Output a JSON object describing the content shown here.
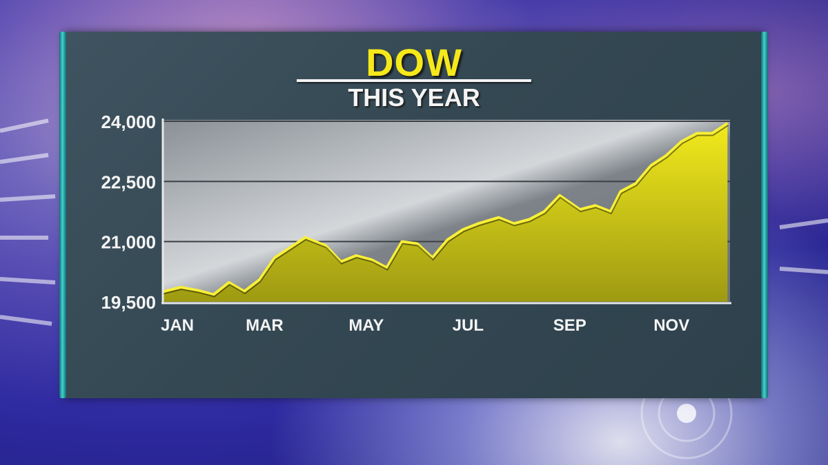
{
  "chart_data": {
    "type": "area",
    "title": "DOW",
    "subtitle": "THIS YEAR",
    "xlabel": "",
    "ylabel": "",
    "ylim": [
      19500,
      24000
    ],
    "yticks": [
      19500,
      21000,
      22500,
      24000
    ],
    "ytick_labels": [
      "19,500",
      "21,000",
      "22,500",
      "24,000"
    ],
    "xticks": [
      "JAN",
      "MAR",
      "MAY",
      "JUL",
      "SEP",
      "NOV"
    ],
    "x_months": [
      0,
      0.35,
      0.7,
      1,
      1.3,
      1.6,
      1.9,
      2.2,
      2.5,
      2.8,
      3.2,
      3.5,
      3.8,
      4.1,
      4.4,
      4.7,
      5,
      5.3,
      5.6,
      5.9,
      6.2,
      6.6,
      6.9,
      7.2,
      7.5,
      7.8,
      8.2,
      8.5,
      8.8,
      9,
      9.3,
      9.6,
      9.9,
      10.2,
      10.5,
      10.8,
      11.1
    ],
    "values": [
      19750,
      19860,
      19780,
      19680,
      19980,
      19760,
      20050,
      20600,
      20850,
      21100,
      20900,
      20500,
      20650,
      20550,
      20350,
      21000,
      20950,
      20600,
      21050,
      21300,
      21450,
      21600,
      21450,
      21550,
      21750,
      22150,
      21800,
      21900,
      21750,
      22250,
      22450,
      22900,
      23150,
      23500,
      23700,
      23700,
      23950
    ],
    "grid": true,
    "fill_color": "#e6df17",
    "line_color": "#f8f037"
  }
}
